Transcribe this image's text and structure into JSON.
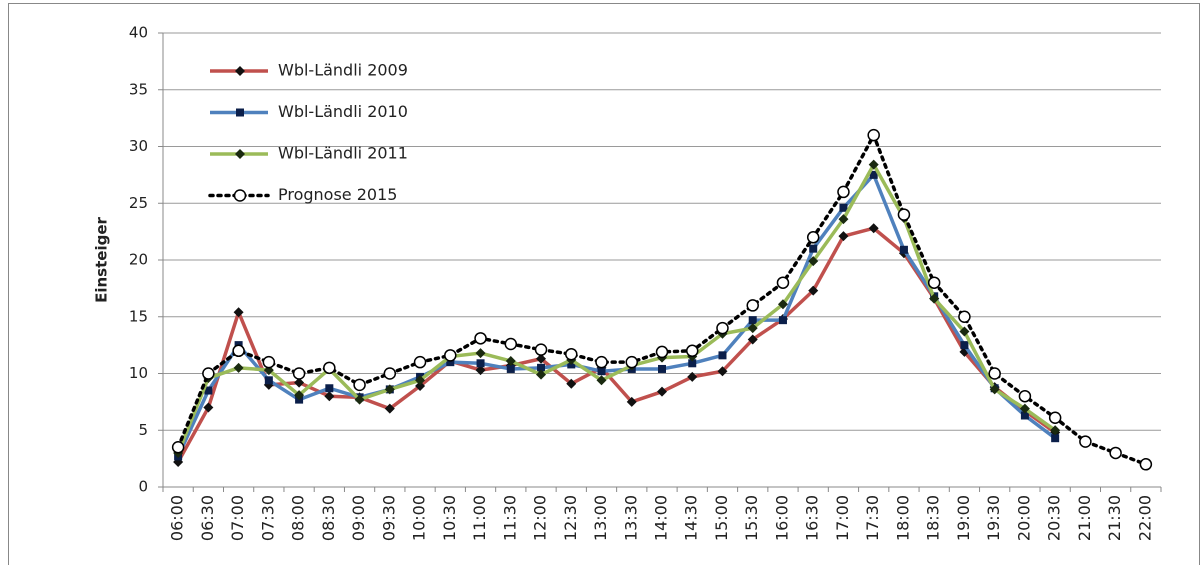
{
  "chart_data": {
    "type": "line",
    "y_label": "Einsteiger",
    "categories": [
      "06:00",
      "06:30",
      "07:00",
      "07:30",
      "08:00",
      "08:30",
      "09:00",
      "09:30",
      "10:00",
      "10:30",
      "11:00",
      "11:30",
      "12:00",
      "12:30",
      "13:00",
      "13:30",
      "14:00",
      "14:30",
      "15:00",
      "15:30",
      "16:00",
      "16:30",
      "17:00",
      "17:30",
      "18:00",
      "18:30",
      "19:00",
      "19:30",
      "20:00",
      "20:30",
      "21:00",
      "21:30",
      "22:00"
    ],
    "series": [
      {
        "name": "Wbl-Ländli 2009",
        "color": "#c0504d",
        "marker": "diamond",
        "marker_color": "#111111",
        "line_style": "solid",
        "values": [
          2.2,
          7,
          15.4,
          9,
          9.2,
          8,
          7.9,
          6.9,
          8.9,
          11.1,
          10.3,
          10.7,
          11.3,
          9.1,
          10.5,
          7.5,
          8.4,
          9.7,
          10.2,
          13,
          14.8,
          17.3,
          22.1,
          22.8,
          20.6,
          16.6,
          11.9,
          8.8,
          6.7,
          4.8,
          null,
          null,
          null
        ]
      },
      {
        "name": "Wbl-Ländli 2010",
        "color": "#4f81bd",
        "marker": "square",
        "marker_color": "#0b1f4a",
        "line_style": "solid",
        "values": [
          2.7,
          8.5,
          12.5,
          9.4,
          7.7,
          8.7,
          7.9,
          8.6,
          9.7,
          11,
          10.9,
          10.4,
          10.5,
          10.8,
          10.2,
          10.4,
          10.4,
          10.9,
          11.6,
          14.7,
          14.7,
          21,
          24.6,
          27.5,
          20.9,
          16.8,
          12.5,
          8.7,
          6.3,
          4.3,
          null,
          null,
          null
        ]
      },
      {
        "name": "Wbl-Ländli 2011",
        "color": "#9bbb59",
        "marker": "diamond",
        "marker_color": "#1a2a10",
        "line_style": "solid",
        "values": [
          3,
          9.6,
          10.5,
          10.3,
          8.1,
          10.4,
          7.7,
          8.6,
          9.4,
          11.5,
          11.8,
          11.1,
          9.9,
          11.2,
          9.4,
          10.7,
          11.4,
          11.5,
          13.5,
          14,
          16.1,
          19.9,
          23.6,
          28.4,
          23.7,
          16.6,
          13.7,
          8.6,
          6.9,
          5,
          null,
          null,
          null
        ]
      },
      {
        "name": "Prognose 2015",
        "color": "#000000",
        "marker": "circle",
        "marker_color": "#000000",
        "line_style": "dotted",
        "values": [
          3.5,
          10,
          12,
          11,
          10,
          10.5,
          9,
          10,
          11,
          11.6,
          13.1,
          12.6,
          12.1,
          11.7,
          11,
          11,
          11.9,
          12,
          14,
          16,
          18,
          22,
          26,
          31,
          24,
          18,
          15,
          10,
          8,
          6.1,
          4,
          3,
          2
        ]
      }
    ],
    "ylim": [
      0,
      40
    ],
    "yticks": [
      0,
      5,
      10,
      15,
      20,
      25,
      30,
      35,
      40
    ],
    "grid": true
  }
}
